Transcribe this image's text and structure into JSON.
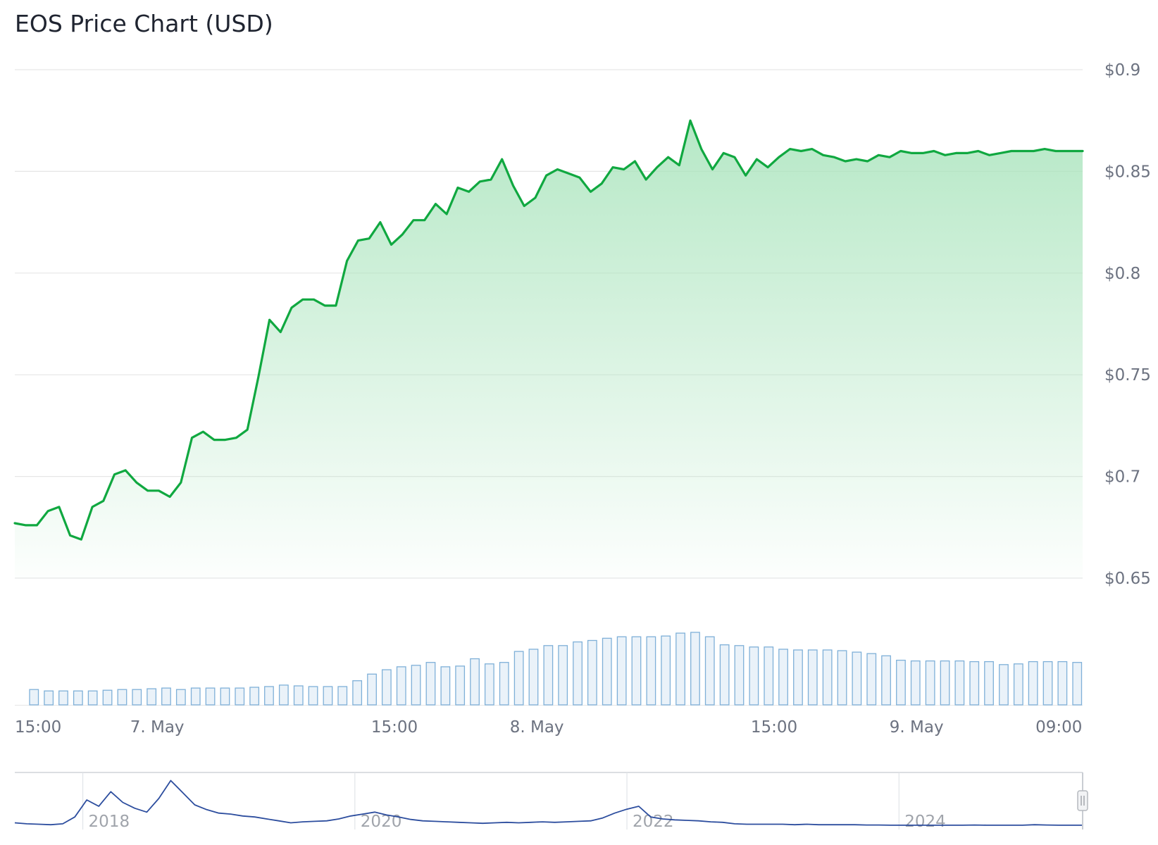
{
  "chart_data": {
    "type": "line",
    "title": "EOS Price Chart (USD)",
    "xlabel": "",
    "ylabel": "",
    "ylim": [
      0.65,
      0.9
    ],
    "y_ticks": [
      "$0.65",
      "$0.7",
      "$0.75",
      "$0.8",
      "$0.85",
      "$0.9"
    ],
    "y_tick_values": [
      0.65,
      0.7,
      0.75,
      0.8,
      0.85,
      0.9
    ],
    "x_ticks": [
      "15:00",
      "7. May",
      "15:00",
      "8. May",
      "15:00",
      "9. May",
      "09:00"
    ],
    "x_tick_hours": [
      0,
      9,
      24,
      33,
      48,
      57,
      66
    ],
    "x_range_hours": [
      0,
      67.5
    ],
    "grid": true,
    "legend": "none",
    "colors": {
      "line": "#10a840",
      "area_top": "#a9e4bc",
      "volume_stroke": "#7fb0d8",
      "volume_fill": "#eaf2f9",
      "navigator_line": "#2c4d9e"
    },
    "series": [
      {
        "type": "line",
        "x_hours": [
          0,
          0.7,
          1.4,
          2.1,
          2.8,
          3.5,
          4.2,
          4.9,
          5.6,
          6.3,
          7.0,
          7.7,
          8.4,
          9.1,
          9.8,
          10.5,
          11.2,
          11.9,
          12.6,
          13.3,
          14.0,
          14.7,
          15.4,
          16.1,
          16.8,
          17.5,
          18.2,
          18.9,
          19.6,
          20.3,
          21.0,
          21.7,
          22.4,
          23.1,
          23.8,
          24.5,
          25.2,
          25.9,
          26.6,
          27.3,
          28.0,
          28.7,
          29.4,
          30.1,
          30.8,
          31.5,
          32.2,
          32.9,
          33.6,
          34.3,
          35.0,
          35.7,
          36.4,
          37.1,
          37.8,
          38.5,
          39.2,
          39.9,
          40.6,
          41.3,
          42.0,
          42.7,
          43.4,
          44.1,
          44.8,
          45.5,
          46.2,
          46.9,
          47.6,
          48.3,
          49.0,
          49.7,
          50.4,
          51.1,
          51.8,
          52.5,
          53.2,
          53.9,
          54.6,
          55.3,
          56.0,
          56.7,
          57.4,
          58.1,
          58.8,
          59.5,
          60.2,
          60.9,
          61.6,
          62.3,
          63.0,
          63.7,
          64.4,
          65.1,
          65.8,
          66.5,
          67.2,
          67.5
        ],
        "values": [
          0.677,
          0.676,
          0.676,
          0.683,
          0.685,
          0.671,
          0.669,
          0.685,
          0.688,
          0.701,
          0.703,
          0.697,
          0.693,
          0.693,
          0.69,
          0.697,
          0.719,
          0.722,
          0.718,
          0.718,
          0.719,
          0.723,
          0.749,
          0.777,
          0.771,
          0.783,
          0.787,
          0.787,
          0.784,
          0.784,
          0.806,
          0.816,
          0.817,
          0.825,
          0.814,
          0.819,
          0.826,
          0.826,
          0.834,
          0.829,
          0.842,
          0.84,
          0.845,
          0.846,
          0.856,
          0.843,
          0.833,
          0.837,
          0.848,
          0.851,
          0.849,
          0.847,
          0.84,
          0.844,
          0.852,
          0.851,
          0.855,
          0.846,
          0.852,
          0.857,
          0.853,
          0.875,
          0.861,
          0.851,
          0.859,
          0.857,
          0.848,
          0.856,
          0.852,
          0.857,
          0.861,
          0.86,
          0.861,
          0.858,
          0.857,
          0.855,
          0.856,
          0.855,
          0.858,
          0.857,
          0.86,
          0.859,
          0.859,
          0.86,
          0.858,
          0.859,
          0.859,
          0.86,
          0.858,
          0.859,
          0.86,
          0.86,
          0.86,
          0.861,
          0.86,
          0.86,
          0.86,
          0.86
        ]
      },
      {
        "type": "column",
        "name_hidden": true,
        "relative_volume": [
          0.21,
          0.19,
          0.19,
          0.19,
          0.19,
          0.2,
          0.21,
          0.21,
          0.22,
          0.23,
          0.21,
          0.23,
          0.23,
          0.23,
          0.23,
          0.24,
          0.25,
          0.27,
          0.26,
          0.25,
          0.25,
          0.25,
          0.33,
          0.42,
          0.48,
          0.52,
          0.54,
          0.58,
          0.52,
          0.53,
          0.63,
          0.56,
          0.58,
          0.73,
          0.76,
          0.81,
          0.81,
          0.86,
          0.88,
          0.91,
          0.93,
          0.93,
          0.93,
          0.94,
          0.98,
          0.99,
          0.93,
          0.82,
          0.81,
          0.79,
          0.79,
          0.76,
          0.75,
          0.75,
          0.75,
          0.74,
          0.72,
          0.7,
          0.67,
          0.61,
          0.6,
          0.6,
          0.6,
          0.6,
          0.59,
          0.59,
          0.55,
          0.56,
          0.59,
          0.59,
          0.59,
          0.58
        ]
      }
    ],
    "navigator": {
      "x_ticks": [
        "2018",
        "2020",
        "2022",
        "2024"
      ],
      "x_tick_years": [
        2018,
        2020,
        2022,
        2024
      ],
      "x_range_years": [
        2017.5,
        2025.35
      ],
      "relative_values": [
        0.08,
        0.06,
        0.05,
        0.04,
        0.06,
        0.2,
        0.55,
        0.42,
        0.72,
        0.5,
        0.38,
        0.3,
        0.58,
        0.95,
        0.7,
        0.45,
        0.35,
        0.28,
        0.26,
        0.22,
        0.2,
        0.16,
        0.12,
        0.08,
        0.1,
        0.11,
        0.12,
        0.16,
        0.22,
        0.26,
        0.3,
        0.24,
        0.2,
        0.15,
        0.12,
        0.11,
        0.1,
        0.09,
        0.08,
        0.07,
        0.08,
        0.09,
        0.08,
        0.09,
        0.1,
        0.09,
        0.1,
        0.11,
        0.12,
        0.18,
        0.28,
        0.36,
        0.42,
        0.2,
        0.16,
        0.14,
        0.13,
        0.12,
        0.1,
        0.09,
        0.06,
        0.05,
        0.05,
        0.05,
        0.05,
        0.04,
        0.05,
        0.04,
        0.04,
        0.04,
        0.04,
        0.035,
        0.035,
        0.03,
        0.03,
        0.03,
        0.03,
        0.03,
        0.03,
        0.03,
        0.035,
        0.03,
        0.03,
        0.03,
        0.03,
        0.04,
        0.035,
        0.03,
        0.03,
        0.03
      ]
    }
  }
}
